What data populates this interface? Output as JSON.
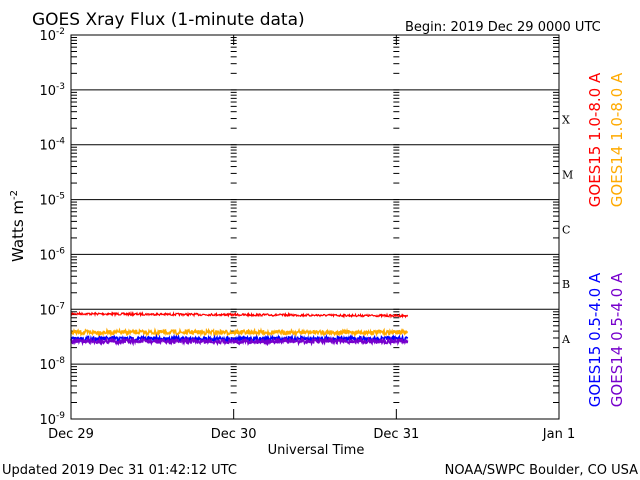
{
  "chart_data": {
    "type": "line",
    "title": "GOES Xray Flux (1-minute data)",
    "begin_label": "Begin:  2019 Dec 29 0000 UTC",
    "xlabel": "Universal Time",
    "ylabel": "Watts m",
    "ylabel_sup": "-2",
    "y_scale": "log",
    "ylim": [
      1e-09,
      0.01
    ],
    "xlim_days": [
      0,
      3
    ],
    "y_ticks": [
      {
        "value": 1e-09,
        "base": "10",
        "exp": "-9"
      },
      {
        "value": 1e-08,
        "base": "10",
        "exp": "-8"
      },
      {
        "value": 1e-07,
        "base": "10",
        "exp": "-7"
      },
      {
        "value": 1e-06,
        "base": "10",
        "exp": "-6"
      },
      {
        "value": 1e-05,
        "base": "10",
        "exp": "-5"
      },
      {
        "value": 0.0001,
        "base": "10",
        "exp": "-4"
      },
      {
        "value": 0.001,
        "base": "10",
        "exp": "-3"
      },
      {
        "value": 0.01,
        "base": "10",
        "exp": "-2"
      }
    ],
    "x_ticks": [
      {
        "day": 0,
        "label": "Dec 29"
      },
      {
        "day": 1,
        "label": "Dec 30"
      },
      {
        "day": 2,
        "label": "Dec 31"
      },
      {
        "day": 3,
        "label": "Jan 1"
      }
    ],
    "flare_classes": [
      {
        "label": "A",
        "value": 3e-08
      },
      {
        "label": "B",
        "value": 3e-07
      },
      {
        "label": "C",
        "value": 3e-06
      },
      {
        "label": "M",
        "value": 3e-05
      },
      {
        "label": "X",
        "value": 0.0003
      }
    ],
    "series": [
      {
        "name": "GOES15 1.0-8.0 A",
        "color": "#ff0000",
        "start_day": 0,
        "end_day": 2.07,
        "base": 8.3e-08,
        "end_value": 7.6e-08
      },
      {
        "name": "GOES14 1.0-8.0 A",
        "color": "#ffaa00",
        "start_day": 0,
        "end_day": 2.07,
        "base": 3.8e-08,
        "end_value": 3.8e-08
      },
      {
        "name": "GOES15 0.5-4.0 A",
        "color": "#0000ff",
        "start_day": 0,
        "end_day": 2.07,
        "base": 2.9e-08,
        "end_value": 2.9e-08
      },
      {
        "name": "GOES14 0.5-4.0 A",
        "color": "#7700cc",
        "start_day": 0,
        "end_day": 2.07,
        "base": 2.6e-08,
        "end_value": 2.6e-08
      }
    ],
    "legend_placement": "right",
    "updated_label": "Updated 2019 Dec 31 01:42:12 UTC",
    "credit_label": "NOAA/SWPC Boulder, CO USA"
  }
}
